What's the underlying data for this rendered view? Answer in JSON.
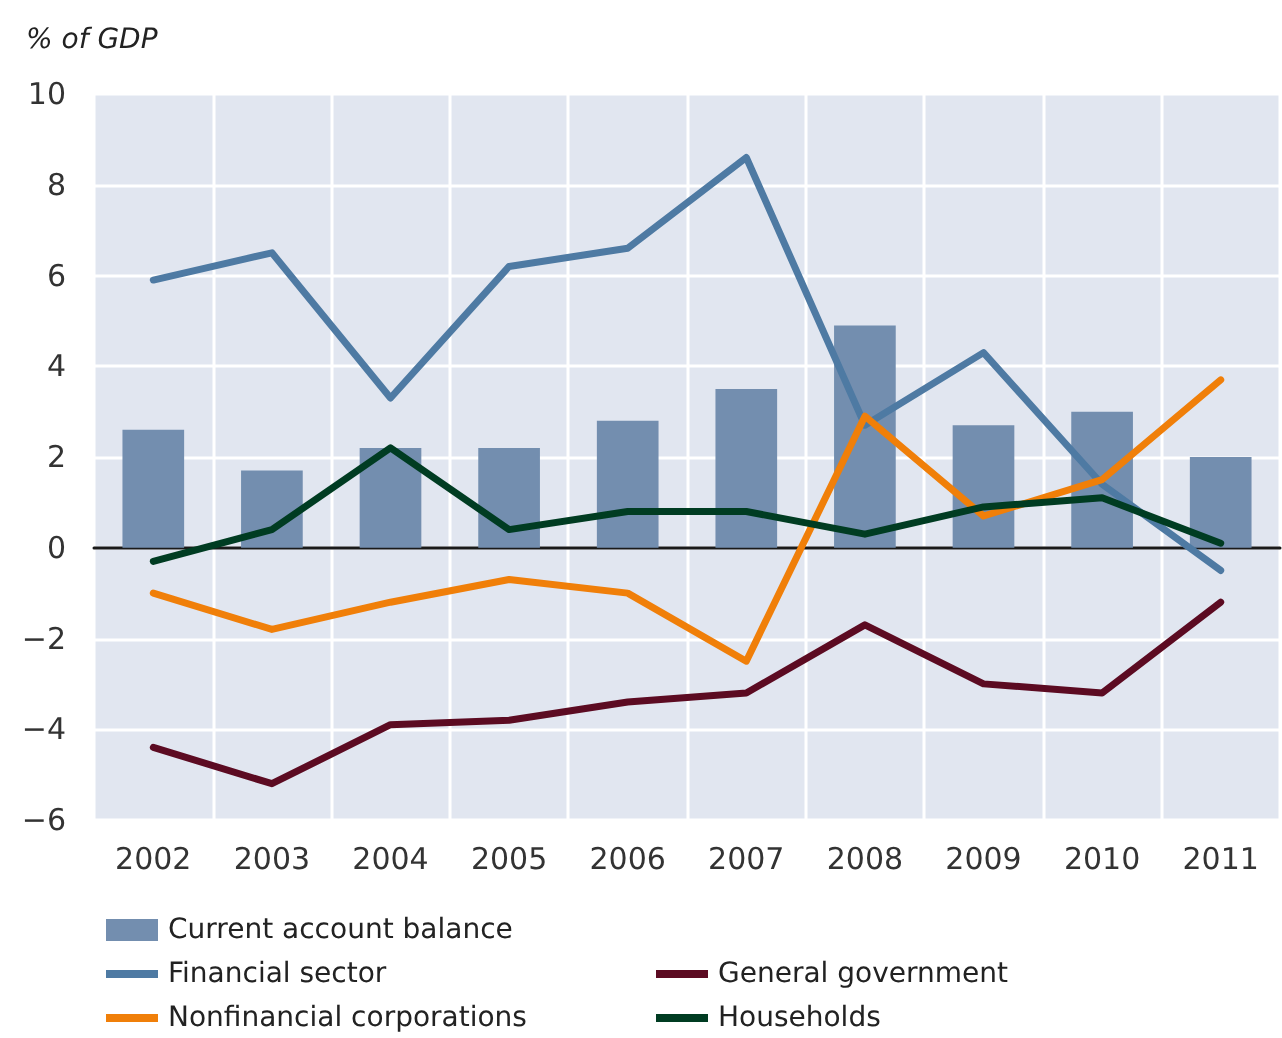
{
  "chart_data": {
    "type": "bar",
    "ylabel": "% of GDP",
    "categories": [
      "2002",
      "2003",
      "2004",
      "2005",
      "2006",
      "2007",
      "2008",
      "2009",
      "2010",
      "2011"
    ],
    "series": [
      {
        "name": "Current account balance",
        "color": "#738eaf",
        "values": [
          2.6,
          1.7,
          2.2,
          2.2,
          2.8,
          3.5,
          4.9,
          2.7,
          3.0,
          2.0
        ]
      },
      {
        "name": "Financial sector",
        "type": "line",
        "color": "#4e7aa3",
        "values": [
          5.9,
          6.5,
          3.3,
          6.2,
          6.6,
          8.6,
          2.7,
          4.3,
          1.4,
          -0.5
        ]
      },
      {
        "name": "General government",
        "type": "line",
        "color": "#5c0b22",
        "values": [
          -4.4,
          -5.2,
          -3.9,
          -3.8,
          -3.4,
          -3.2,
          -1.7,
          -3.0,
          -3.2,
          -1.2
        ]
      },
      {
        "name": "Nonfinancial corporations",
        "type": "line",
        "color": "#f07f09",
        "values": [
          -1.0,
          -1.8,
          -1.2,
          -0.7,
          -1.0,
          -2.5,
          2.9,
          0.7,
          1.5,
          3.7
        ]
      },
      {
        "name": "Households",
        "type": "line",
        "color": "#003c22",
        "values": [
          -0.3,
          0.4,
          2.2,
          0.4,
          0.8,
          0.8,
          0.3,
          0.9,
          1.1,
          0.1
        ]
      }
    ],
    "ylim": [
      -6,
      10
    ],
    "yticks": [
      -6,
      -4,
      -2,
      0,
      2,
      4,
      6,
      8,
      10
    ],
    "grid": true,
    "legend": "bottom",
    "marker": "none",
    "line_style": "solid"
  }
}
